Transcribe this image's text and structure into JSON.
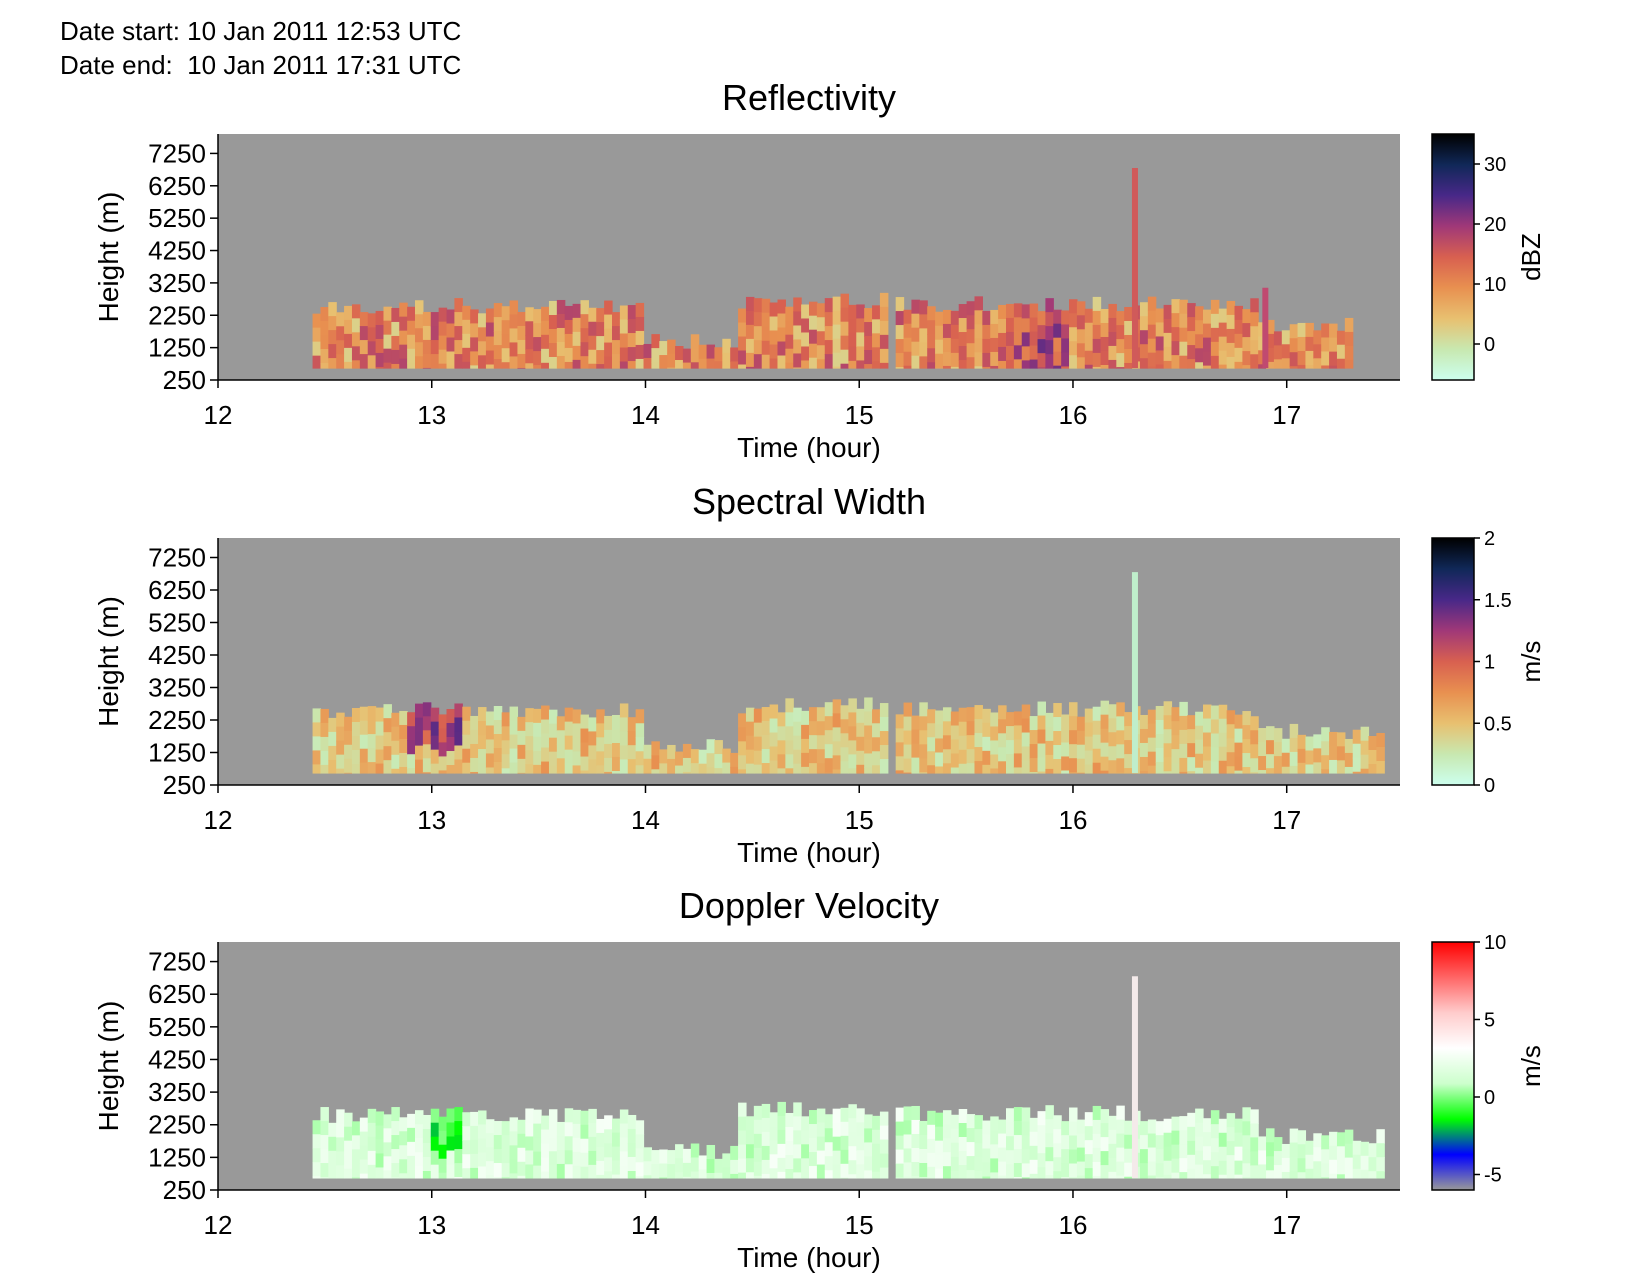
{
  "header": {
    "date_start": "Date start: 10 Jan 2011 12:53 UTC",
    "date_end": "Date end:  10 Jan 2011 17:31 UTC"
  },
  "chart_data": [
    {
      "type": "heatmap",
      "title": "Reflectivity",
      "xlabel": "Time (hour)",
      "ylabel": "Height (m)",
      "x_ticks": [
        12,
        13,
        14,
        15,
        16,
        17
      ],
      "y_ticks": [
        250,
        1250,
        2250,
        3250,
        4250,
        5250,
        6250,
        7250
      ],
      "xlim": [
        12,
        17.53
      ],
      "ylim": [
        250,
        7850
      ],
      "background_color": "#999999",
      "colorbar": {
        "label": "dBZ",
        "ticks": [
          0,
          10,
          20,
          30
        ],
        "range": [
          -6,
          35
        ],
        "colors": [
          "#ccffee",
          "#c8e8b0",
          "#e8c070",
          "#e89050",
          "#d86050",
          "#a03878",
          "#482888",
          "#102858",
          "#000000"
        ]
      },
      "cloud": {
        "base_m": 620,
        "segments": [
          {
            "from": 12.43,
            "to": 14.0,
            "top_m": 2550
          },
          {
            "from": 14.0,
            "to": 14.45,
            "top_m": 1450
          },
          {
            "from": 14.45,
            "to": 15.13,
            "top_m": 2700
          },
          {
            "from": 15.18,
            "to": 16.88,
            "top_m": 2600
          },
          {
            "from": 16.88,
            "to": 17.32,
            "top_m": 2000
          }
        ],
        "spike": {
          "at": 16.29,
          "top_m": 6800
        },
        "spike2": {
          "at": 16.9,
          "top_m": 3100
        }
      }
    },
    {
      "type": "heatmap",
      "title": "Spectral Width",
      "xlabel": "Time (hour)",
      "ylabel": "Height (m)",
      "x_ticks": [
        12,
        13,
        14,
        15,
        16,
        17
      ],
      "y_ticks": [
        250,
        1250,
        2250,
        3250,
        4250,
        5250,
        6250,
        7250
      ],
      "xlim": [
        12,
        17.53
      ],
      "ylim": [
        250,
        7850
      ],
      "background_color": "#999999",
      "colorbar": {
        "label": "m/s",
        "ticks": [
          0,
          0.5,
          1,
          1.5,
          2
        ],
        "range": [
          0,
          2
        ],
        "colors": [
          "#ccffee",
          "#c8e8b0",
          "#e8c070",
          "#e89050",
          "#d86050",
          "#a03878",
          "#482888",
          "#102858",
          "#000000"
        ]
      },
      "cloud": {
        "base_m": 620,
        "segments": [
          {
            "from": 12.43,
            "to": 14.0,
            "top_m": 2550
          },
          {
            "from": 14.0,
            "to": 14.45,
            "top_m": 1450
          },
          {
            "from": 14.45,
            "to": 15.13,
            "top_m": 2700
          },
          {
            "from": 15.18,
            "to": 16.88,
            "top_m": 2600
          },
          {
            "from": 16.88,
            "to": 17.47,
            "top_m": 1900
          }
        ],
        "spike": {
          "at": 16.29,
          "top_m": 6800
        }
      }
    },
    {
      "type": "heatmap",
      "title": "Doppler Velocity",
      "xlabel": "Time (hour)",
      "ylabel": "Height (m)",
      "x_ticks": [
        12,
        13,
        14,
        15,
        16,
        17
      ],
      "y_ticks": [
        250,
        1250,
        2250,
        3250,
        4250,
        5250,
        6250,
        7250
      ],
      "xlim": [
        12,
        17.53
      ],
      "ylim": [
        250,
        7850
      ],
      "background_color": "#999999",
      "colorbar": {
        "label": "m/s",
        "ticks": [
          -5,
          0,
          5,
          10
        ],
        "range": [
          -6,
          10
        ],
        "colors": [
          "#999999",
          "#0000ff",
          "#00ff00",
          "#ccffcc",
          "#ffffff",
          "#ffcccc",
          "#ff6666",
          "#ff0000"
        ]
      },
      "cloud": {
        "base_m": 620,
        "segments": [
          {
            "from": 12.43,
            "to": 14.0,
            "top_m": 2550
          },
          {
            "from": 14.0,
            "to": 14.45,
            "top_m": 1450
          },
          {
            "from": 14.45,
            "to": 15.13,
            "top_m": 2700
          },
          {
            "from": 15.18,
            "to": 16.88,
            "top_m": 2600
          },
          {
            "from": 16.88,
            "to": 17.47,
            "top_m": 1900
          }
        ],
        "spike": {
          "at": 16.29,
          "top_m": 6800
        }
      }
    }
  ]
}
